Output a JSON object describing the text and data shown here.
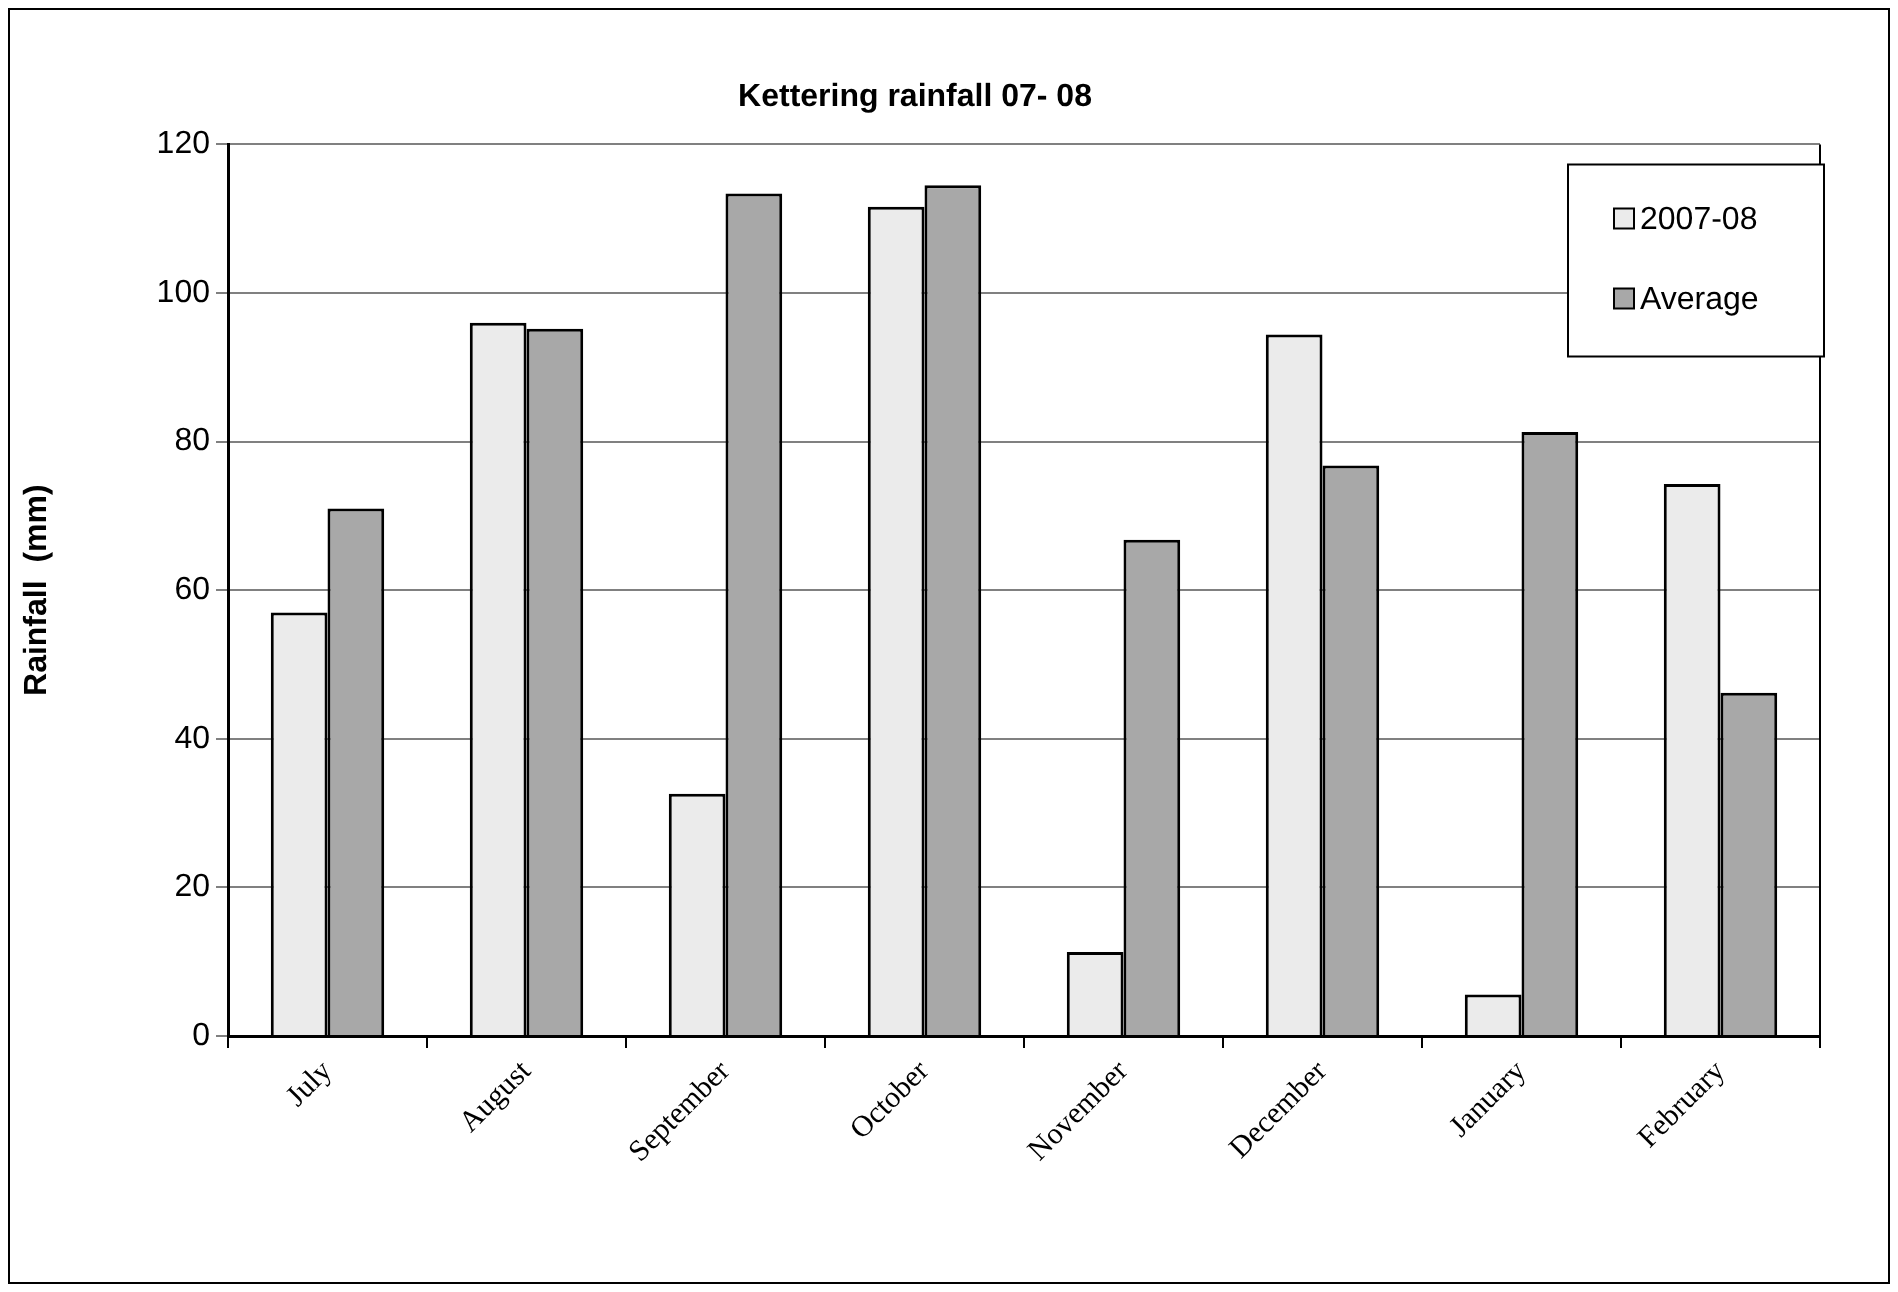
{
  "chart_data": {
    "type": "bar",
    "title": "Kettering rainfall 07- 08",
    "ylabel": "Rainfall  (mm)",
    "categories": [
      "July",
      "August",
      "September",
      "October",
      "November",
      "December",
      "January",
      "February"
    ],
    "series": [
      {
        "name": "2007-08",
        "color": "#ebebeb",
        "values": [
          57,
          96,
          32.6,
          111.6,
          11.3,
          94.4,
          5.6,
          74.3
        ]
      },
      {
        "name": "Average",
        "color": "#a8a8a8",
        "values": [
          71,
          95.2,
          113.4,
          114.5,
          66.8,
          76.8,
          81.3,
          46.2
        ]
      }
    ],
    "ylim": [
      0,
      120
    ],
    "yticks": [
      0,
      20,
      40,
      60,
      80,
      100,
      120
    ],
    "grid": "y",
    "legend": "top right"
  }
}
